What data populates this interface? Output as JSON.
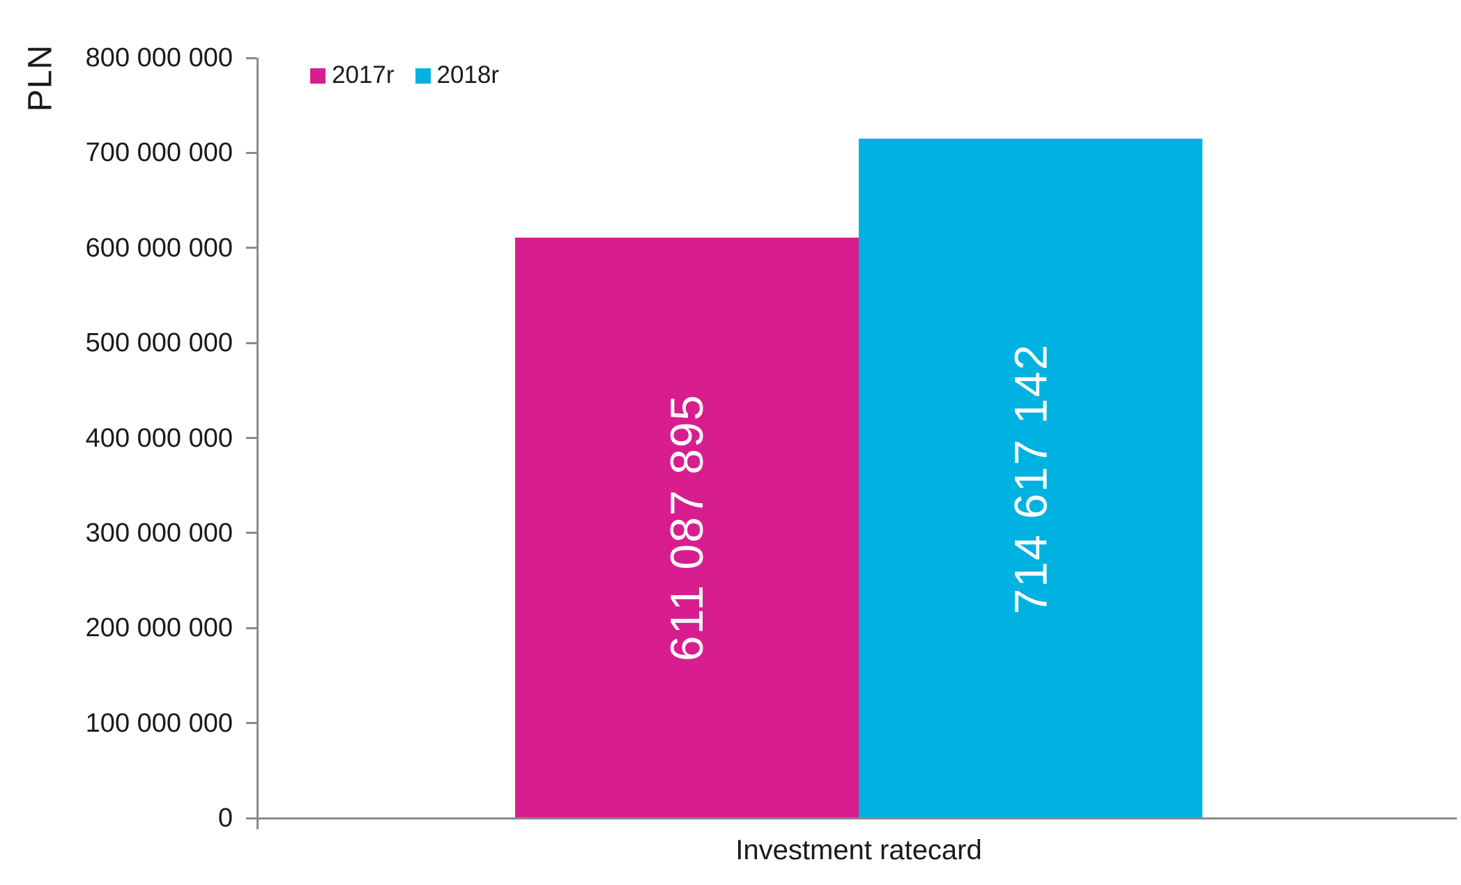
{
  "y_axis_title": "PLN",
  "x_axis_label": "Investment ratecard",
  "legend": {
    "items": [
      {
        "label": "2017r",
        "color": "#d81e8f"
      },
      {
        "label": "2018r",
        "color": "#00b2e2"
      }
    ]
  },
  "colors": {
    "background": "#ffffff",
    "axis": "#8a8a8a",
    "text": "#1a1a1a",
    "bar_label_text": "#ffffff",
    "series_2017": "#d81e8f",
    "series_2018": "#00b2e2"
  },
  "chart_data": {
    "type": "bar",
    "title": "",
    "xlabel": "Investment ratecard",
    "ylabel": "PLN",
    "categories": [
      "Investment ratecard"
    ],
    "series": [
      {
        "name": "2017r",
        "color": "#d81e8f",
        "values": [
          611087895
        ],
        "value_labels": [
          "611 087 895"
        ]
      },
      {
        "name": "2018r",
        "color": "#00b2e2",
        "values": [
          714617142
        ],
        "value_labels": [
          "714 617 142"
        ]
      }
    ],
    "ylim": [
      0,
      800000000
    ],
    "ytick_step": 100000000,
    "ytick_labels": [
      "0",
      "100 000 000",
      "200 000 000",
      "300 000 000",
      "400 000 000",
      "500 000 000",
      "600 000 000",
      "700 000 000",
      "800 000 000"
    ],
    "grid": false,
    "legend_position": "top-left",
    "bar_value_labels_rotated": true
  }
}
